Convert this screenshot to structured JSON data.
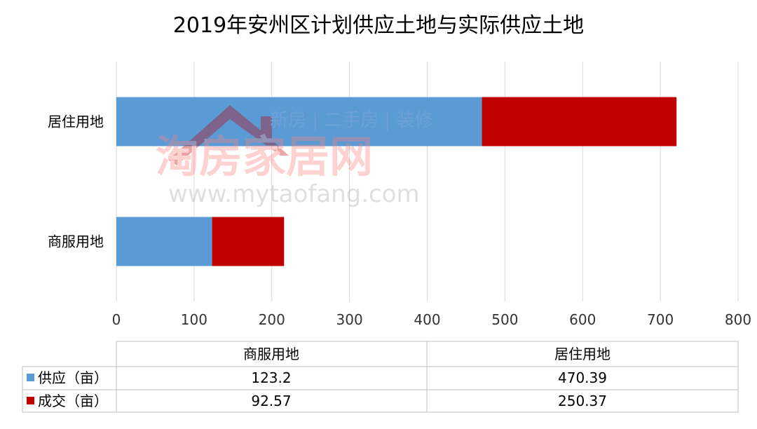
{
  "colors": {
    "supply": "#5b9bd5",
    "deal": "#c00000",
    "grid": "#d9d9d9"
  },
  "watermark": {
    "tagline": "新房 | 二手房 | 装修",
    "logo": "淘房家居网",
    "url": "www.mytaofang.com"
  },
  "chart_data": {
    "type": "bar",
    "orientation": "horizontal",
    "stacked": true,
    "title": "2019年安州区计划供应土地与实际供应土地",
    "categories": [
      "居住用地",
      "商服用地"
    ],
    "series": [
      {
        "name": "供应（亩）",
        "color": "#5b9bd5",
        "values": [
          470.39,
          123.2
        ]
      },
      {
        "name": "成交（亩）",
        "color": "#c00000",
        "values": [
          250.37,
          92.57
        ]
      }
    ],
    "xlim": [
      0,
      800
    ],
    "xticks": [
      "0",
      "100",
      "200",
      "300",
      "400",
      "500",
      "600",
      "700",
      "800"
    ],
    "grid": true,
    "legend": "data-table",
    "data_table": {
      "columns": [
        "商服用地",
        "居住用地"
      ],
      "rows": [
        {
          "label": "供应（亩）",
          "values": [
            "123.2",
            "470.39"
          ]
        },
        {
          "label": "成交（亩）",
          "values": [
            "92.57",
            "250.37"
          ]
        }
      ]
    }
  }
}
